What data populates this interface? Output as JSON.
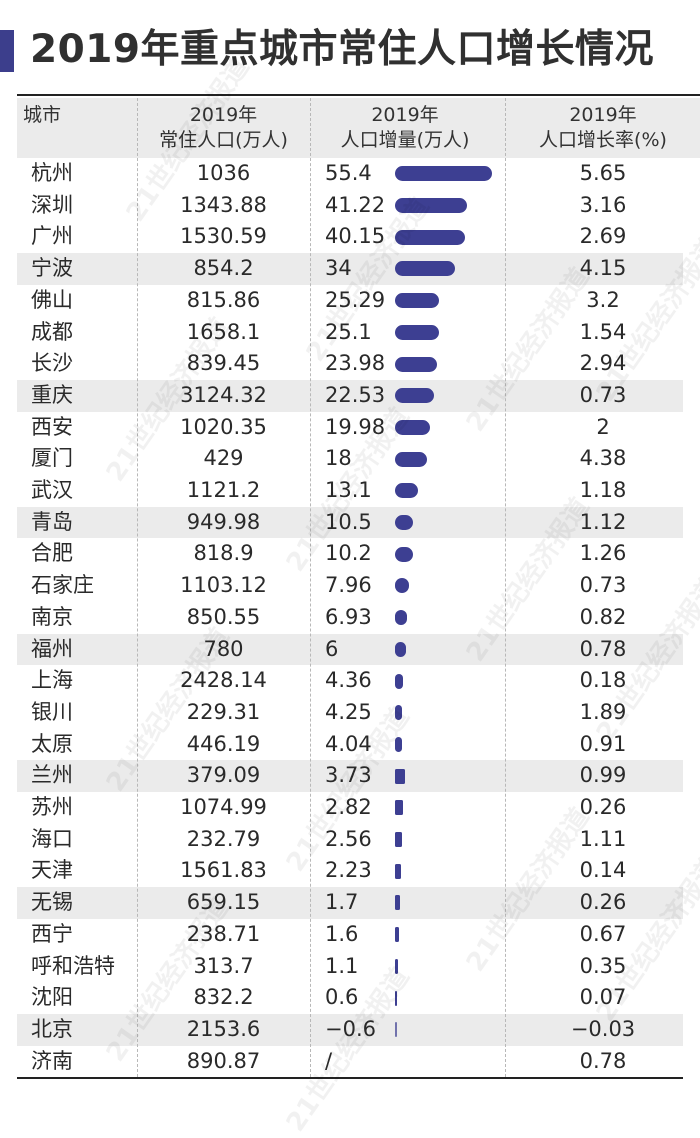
{
  "title": "2019年重点城市常住人口增长情况",
  "colors": {
    "accent": "#3c3e8c",
    "bar": "#3d3f92",
    "stripe": "#ebebeb"
  },
  "header": {
    "city": "城市",
    "population": [
      "2019年",
      "常住人口(万人)"
    ],
    "increase": [
      "2019年",
      "人口增量(万人)"
    ],
    "rate": [
      "2019年",
      "人口增长率(%)"
    ]
  },
  "chart_data": {
    "type": "table",
    "title": "2019年重点城市常住人口增长情况",
    "columns": [
      "城市",
      "2019年常住人口(万人)",
      "2019年人口增量(万人)",
      "2019年人口增长率(%)"
    ],
    "rows": [
      {
        "city": "杭州",
        "population": "1036",
        "increase": "55.4",
        "increase_value": 55.4,
        "rate": "5.65"
      },
      {
        "city": "深圳",
        "population": "1343.88",
        "increase": "41.22",
        "increase_value": 41.22,
        "rate": "3.16"
      },
      {
        "city": "广州",
        "population": "1530.59",
        "increase": "40.15",
        "increase_value": 40.15,
        "rate": "2.69"
      },
      {
        "city": "宁波",
        "population": "854.2",
        "increase": "34",
        "increase_value": 34,
        "rate": "4.15"
      },
      {
        "city": "佛山",
        "population": "815.86",
        "increase": "25.29",
        "increase_value": 25.29,
        "rate": "3.2"
      },
      {
        "city": "成都",
        "population": "1658.1",
        "increase": "25.1",
        "increase_value": 25.1,
        "rate": "1.54"
      },
      {
        "city": "长沙",
        "population": "839.45",
        "increase": "23.98",
        "increase_value": 23.98,
        "rate": "2.94"
      },
      {
        "city": "重庆",
        "population": "3124.32",
        "increase": "22.53",
        "increase_value": 22.53,
        "rate": "0.73"
      },
      {
        "city": "西安",
        "population": "1020.35",
        "increase": "19.98",
        "increase_value": 19.98,
        "rate": "2"
      },
      {
        "city": "厦门",
        "population": "429",
        "increase": "18",
        "increase_value": 18,
        "rate": "4.38"
      },
      {
        "city": "武汉",
        "population": "1121.2",
        "increase": "13.1",
        "increase_value": 13.1,
        "rate": "1.18"
      },
      {
        "city": "青岛",
        "population": "949.98",
        "increase": "10.5",
        "increase_value": 10.5,
        "rate": "1.12"
      },
      {
        "city": "合肥",
        "population": "818.9",
        "increase": "10.2",
        "increase_value": 10.2,
        "rate": "1.26"
      },
      {
        "city": "石家庄",
        "population": "1103.12",
        "increase": "7.96",
        "increase_value": 7.96,
        "rate": "0.73"
      },
      {
        "city": "南京",
        "population": "850.55",
        "increase": "6.93",
        "increase_value": 6.93,
        "rate": "0.82"
      },
      {
        "city": "福州",
        "population": "780",
        "increase": "6",
        "increase_value": 6,
        "rate": "0.78"
      },
      {
        "city": "上海",
        "population": "2428.14",
        "increase": "4.36",
        "increase_value": 4.36,
        "rate": "0.18"
      },
      {
        "city": "银川",
        "population": "229.31",
        "increase": "4.25",
        "increase_value": 4.25,
        "rate": "1.89"
      },
      {
        "city": "太原",
        "population": "446.19",
        "increase": "4.04",
        "increase_value": 4.04,
        "rate": "0.91"
      },
      {
        "city": "兰州",
        "population": "379.09",
        "increase": "3.73",
        "increase_value": 3.73,
        "rate": "0.99"
      },
      {
        "city": "苏州",
        "population": "1074.99",
        "increase": "2.82",
        "increase_value": 2.82,
        "rate": "0.26"
      },
      {
        "city": "海口",
        "population": "232.79",
        "increase": "2.56",
        "increase_value": 2.56,
        "rate": "1.11"
      },
      {
        "city": "天津",
        "population": "1561.83",
        "increase": "2.23",
        "increase_value": 2.23,
        "rate": "0.14"
      },
      {
        "city": "无锡",
        "population": "659.15",
        "increase": "1.7",
        "increase_value": 1.7,
        "rate": "0.26"
      },
      {
        "city": "西宁",
        "population": "238.71",
        "increase": "1.6",
        "increase_value": 1.6,
        "rate": "0.67"
      },
      {
        "city": "呼和浩特",
        "population": "313.7",
        "increase": "1.1",
        "increase_value": 1.1,
        "rate": "0.35"
      },
      {
        "city": "沈阳",
        "population": "832.2",
        "increase": "0.6",
        "increase_value": 0.6,
        "rate": "0.07"
      },
      {
        "city": "北京",
        "population": "2153.6",
        "increase": "−0.6",
        "increase_value": -0.6,
        "rate": "−0.03"
      },
      {
        "city": "济南",
        "population": "890.87",
        "increase": "/",
        "increase_value": null,
        "rate": "0.78"
      }
    ],
    "shaded_rows": [
      3,
      7,
      11,
      15,
      19,
      23,
      27
    ]
  },
  "watermark": "21世纪经济报道"
}
